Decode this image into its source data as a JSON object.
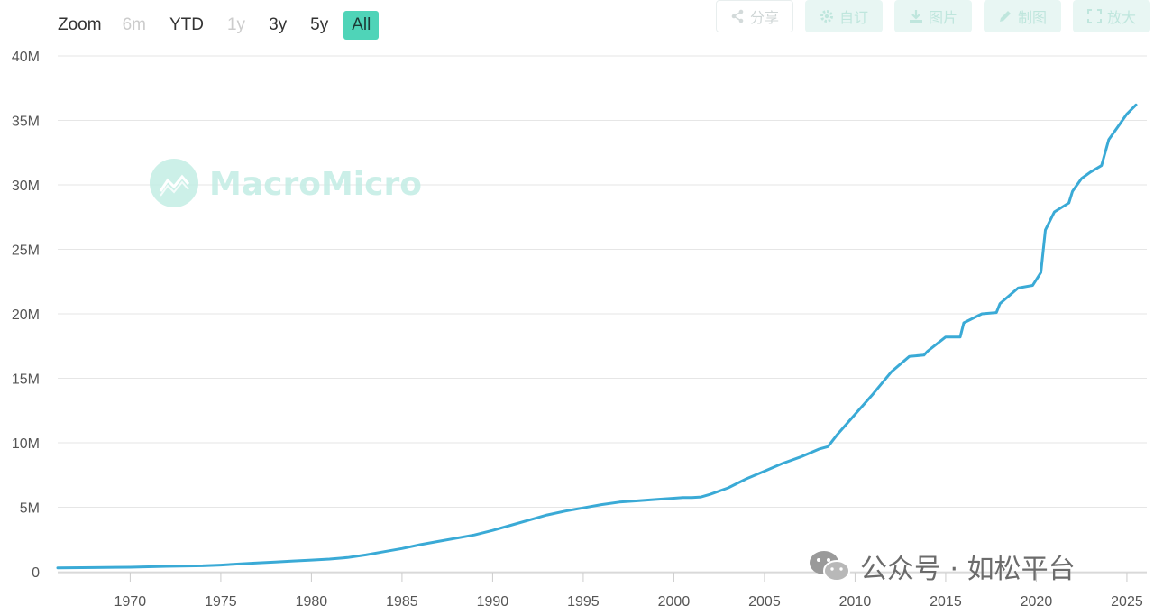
{
  "zoom": {
    "label": "Zoom",
    "buttons": [
      {
        "label": "6m",
        "state": "disabled"
      },
      {
        "label": "YTD",
        "state": "normal"
      },
      {
        "label": "1y",
        "state": "disabled"
      },
      {
        "label": "3y",
        "state": "normal"
      },
      {
        "label": "5y",
        "state": "normal"
      },
      {
        "label": "All",
        "state": "active"
      }
    ]
  },
  "toolbar": {
    "share_label": "分享",
    "custom_label": "自订",
    "image_label": "图片",
    "draw_label": "制图",
    "fullscreen_label": "放大"
  },
  "watermark": {
    "brand": "MacroMicro"
  },
  "wechat_watermark": {
    "text": "公众号 · 如松平台"
  },
  "colors": {
    "line": "#3aaad6",
    "active_zoom": "#4fd4b8",
    "watermark": "#c3ede4"
  },
  "chart_data": {
    "type": "line",
    "xlim": [
      1966,
      2025.6
    ],
    "ylim": [
      0,
      40000000
    ],
    "y_ticks": [
      0,
      5000000,
      10000000,
      15000000,
      20000000,
      25000000,
      30000000,
      35000000,
      40000000
    ],
    "y_tick_labels": [
      "0",
      "5M",
      "10M",
      "15M",
      "20M",
      "25M",
      "30M",
      "35M",
      "40M"
    ],
    "x_ticks": [
      1970,
      1975,
      1980,
      1985,
      1990,
      1995,
      2000,
      2005,
      2010,
      2015,
      2020,
      2025
    ],
    "x_tick_labels": [
      "1970",
      "1975",
      "1980",
      "1985",
      "1990",
      "1995",
      "2000",
      "2005",
      "2010",
      "2015",
      "2020",
      "2025"
    ],
    "grid": true,
    "series": [
      {
        "color": "#3aaad6",
        "x": [
          1966,
          1968,
          1970,
          1972,
          1974,
          1975,
          1976,
          1977,
          1978,
          1979,
          1980,
          1981,
          1982,
          1983,
          1984,
          1985,
          1986,
          1987,
          1988,
          1989,
          1990,
          1991,
          1992,
          1993,
          1994,
          1995,
          1996,
          1997,
          1998,
          1999,
          2000,
          2000.5,
          2001,
          2001.5,
          2002,
          2003,
          2004,
          2005,
          2006,
          2007,
          2008,
          2008.5,
          2009,
          2010,
          2011,
          2012,
          2013,
          2013.8,
          2014,
          2015,
          2015.8,
          2016,
          2017,
          2017.8,
          2018,
          2019,
          2019.8,
          2020.25,
          2020.5,
          2021,
          2021.8,
          2022,
          2022.5,
          2023,
          2023.6,
          2024,
          2024.5,
          2025,
          2025.5
        ],
        "values": [
          300000,
          320000,
          350000,
          420000,
          460000,
          520000,
          600000,
          680000,
          750000,
          830000,
          900000,
          980000,
          1100000,
          1300000,
          1550000,
          1800000,
          2100000,
          2350000,
          2600000,
          2850000,
          3200000,
          3600000,
          4000000,
          4400000,
          4700000,
          4950000,
          5200000,
          5400000,
          5500000,
          5600000,
          5700000,
          5750000,
          5750000,
          5800000,
          6000000,
          6500000,
          7200000,
          7800000,
          8400000,
          8900000,
          9500000,
          9700000,
          10600000,
          12200000,
          13800000,
          15500000,
          16700000,
          16800000,
          17100000,
          18200000,
          18200000,
          19300000,
          20000000,
          20100000,
          20800000,
          22000000,
          22200000,
          23200000,
          26500000,
          27900000,
          28600000,
          29500000,
          30500000,
          31000000,
          31500000,
          33500000,
          34500000,
          35500000,
          36200000
        ]
      }
    ]
  }
}
